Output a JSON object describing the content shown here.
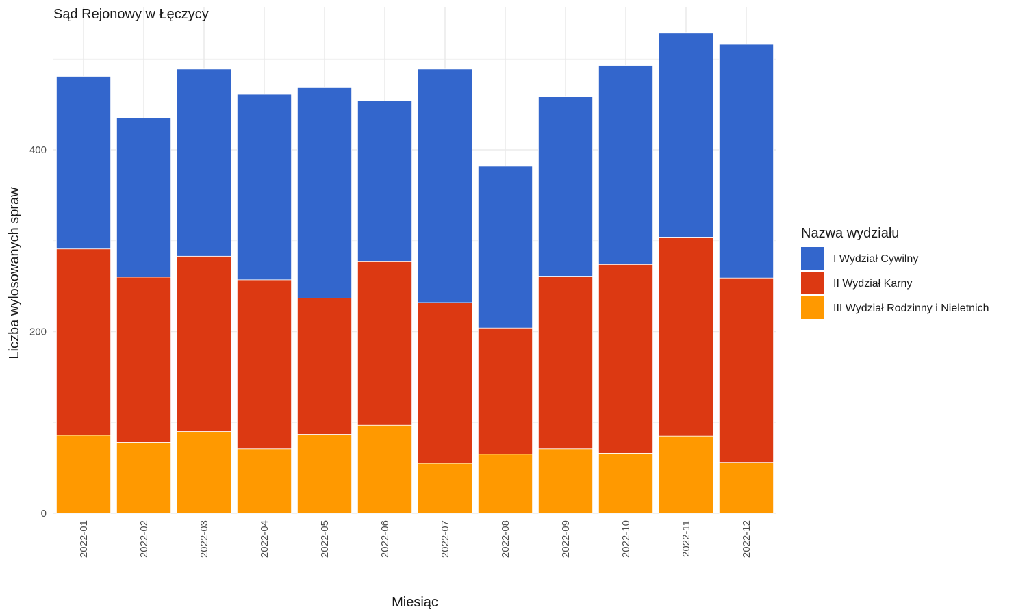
{
  "chart_data": {
    "type": "bar",
    "stacked": true,
    "title": "Sąd Rejonowy w Łęczycy",
    "xlabel": "Miesiąc",
    "ylabel": "Liczba wylosowanych spraw",
    "ylim": [
      0,
      555
    ],
    "yticks": [
      0,
      200,
      400
    ],
    "grid": true,
    "legend_position": "right",
    "legend_title": "Nazwa wydziału",
    "categories": [
      "2022-01",
      "2022-02",
      "2022-03",
      "2022-04",
      "2022-05",
      "2022-06",
      "2022-07",
      "2022-08",
      "2022-09",
      "2022-10",
      "2022-11",
      "2022-12"
    ],
    "series": [
      {
        "name": "III Wydział Rodzinny i Nieletnich",
        "color": "#ff9900",
        "values": [
          86,
          78,
          90,
          71,
          87,
          97,
          55,
          65,
          71,
          66,
          85,
          56
        ]
      },
      {
        "name": "II Wydział Karny",
        "color": "#dc3912",
        "values": [
          205,
          182,
          193,
          186,
          150,
          180,
          177,
          139,
          190,
          208,
          219,
          203
        ]
      },
      {
        "name": "I Wydział Cywilny",
        "color": "#3366cc",
        "values": [
          190,
          175,
          206,
          204,
          232,
          177,
          257,
          178,
          198,
          219,
          225,
          257
        ]
      }
    ],
    "legend_order": [
      "I Wydział Cywilny",
      "II Wydział Karny",
      "III Wydział Rodzinny i Nieletnich"
    ]
  }
}
